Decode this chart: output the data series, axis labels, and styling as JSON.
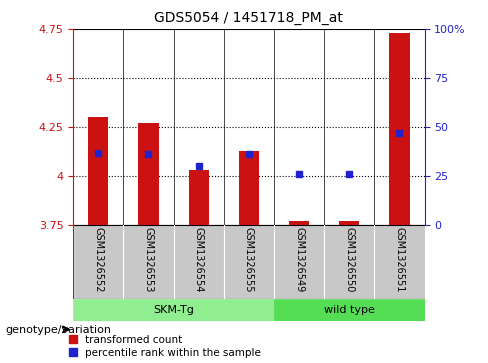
{
  "title": "GDS5054 / 1451718_PM_at",
  "samples": [
    "GSM1326552",
    "GSM1326553",
    "GSM1326554",
    "GSM1326555",
    "GSM1326549",
    "GSM1326550",
    "GSM1326551"
  ],
  "red_values": [
    4.3,
    4.27,
    4.03,
    4.13,
    3.77,
    3.77,
    4.73
  ],
  "blue_values_pct": [
    37,
    36,
    30,
    36,
    26,
    26,
    47
  ],
  "ylim_left": [
    3.75,
    4.75
  ],
  "ylim_right": [
    0,
    100
  ],
  "yticks_left": [
    3.75,
    4.0,
    4.25,
    4.5,
    4.75
  ],
  "yticks_right": [
    0,
    25,
    50,
    75,
    100
  ],
  "ytick_labels_left": [
    "3.75",
    "4",
    "4.25",
    "4.5",
    "4.75"
  ],
  "ytick_labels_right": [
    "0",
    "25",
    "50",
    "75",
    "100%"
  ],
  "bar_bottom": 3.75,
  "bar_color": "#cc1111",
  "dot_color": "#2222cc",
  "group1_label": "SKM-Tg",
  "group2_label": "wild type",
  "group1_indices": [
    0,
    1,
    2,
    3
  ],
  "group2_indices": [
    4,
    5,
    6
  ],
  "group1_color": "#90ee90",
  "group2_color": "#55dd55",
  "genotype_label": "genotype/variation",
  "legend_red": "transformed count",
  "legend_blue": "percentile rank within the sample",
  "bar_width": 0.4,
  "gray_box_color": "#c8c8c8",
  "separator_color": "#ffffff"
}
